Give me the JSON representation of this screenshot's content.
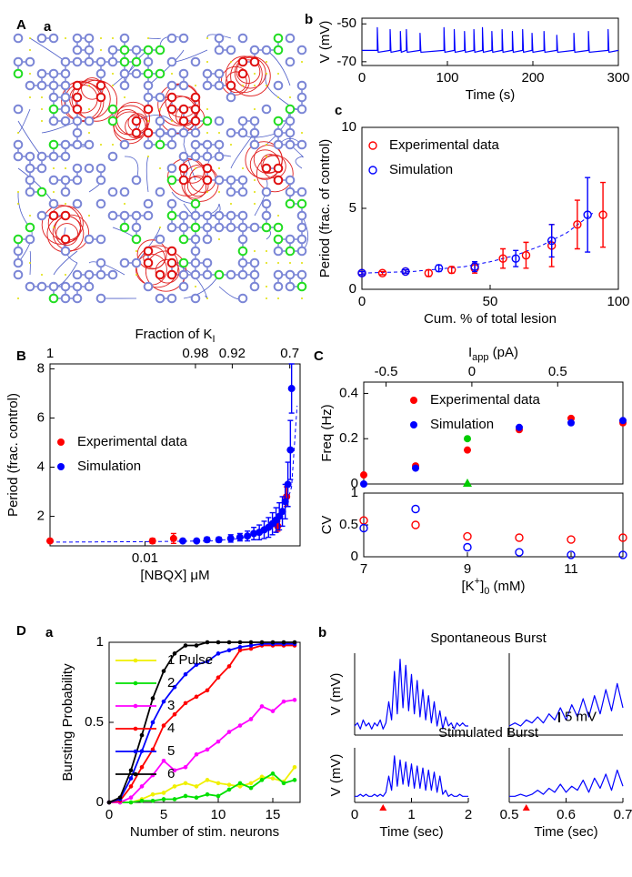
{
  "panel_labels": [
    "A",
    "a",
    "b",
    "c",
    "B",
    "C",
    "D",
    "a",
    "b"
  ],
  "chart_data": [
    {
      "type": "line",
      "y_label": "V (mV)",
      "x_label": "Time (s)",
      "xlim": [
        0,
        300
      ],
      "xticks": [
        0,
        100,
        200,
        300
      ],
      "ylim": [
        -72,
        -47
      ],
      "yticks": [
        -70,
        -50
      ],
      "series": [
        {
          "color": "#0000ff",
          "x": [
            0,
            18,
            18,
            19,
            33,
            33,
            34,
            45,
            45,
            46,
            52,
            52,
            53,
            68,
            68,
            69,
            96,
            96,
            97,
            108,
            108,
            109,
            120,
            120,
            121,
            131,
            131,
            132,
            141,
            141,
            142,
            152,
            152,
            153,
            164,
            164,
            165,
            176,
            176,
            177,
            188,
            188,
            189,
            199,
            199,
            200,
            213,
            213,
            214,
            228,
            228,
            229,
            248,
            248,
            249,
            265,
            265,
            266,
            288,
            288,
            289,
            300
          ],
          "values": [
            -64,
            -64,
            -52,
            -65,
            -64,
            -53,
            -65,
            -64,
            -54,
            -65,
            -64,
            -53,
            -65,
            -64,
            -55,
            -65,
            -64,
            -52,
            -65,
            -64,
            -53,
            -65,
            -64,
            -54,
            -65,
            -64,
            -53,
            -65,
            -64,
            -52,
            -65,
            -64,
            -54,
            -65,
            -64,
            -53,
            -65,
            -64,
            -54,
            -65,
            -64,
            -53,
            -65,
            -64,
            -55,
            -65,
            -64,
            -54,
            -65,
            -64,
            -56,
            -65,
            -64,
            -55,
            -65,
            -64,
            -54,
            -65,
            -64,
            -53,
            -65,
            -64
          ]
        }
      ]
    },
    {
      "type": "scatter",
      "y_label": "Period (frac. of control)",
      "x_label": "Cum. % of total lesion",
      "xlim": [
        0,
        100
      ],
      "xticks": [
        0,
        50,
        100
      ],
      "ylim": [
        0,
        10
      ],
      "yticks": [
        0,
        5,
        10
      ],
      "legend": "upper left",
      "series": [
        {
          "name": "Experimental data",
          "color": "#ff0000",
          "marker": "hollow",
          "x": [
            0,
            8,
            17,
            26,
            35,
            44,
            55,
            64,
            74,
            84,
            94
          ],
          "values": [
            1.0,
            1.0,
            1.1,
            1.0,
            1.2,
            1.3,
            1.9,
            2.1,
            2.7,
            4.0,
            4.6
          ],
          "errors": [
            0.1,
            0.1,
            0.1,
            0.2,
            0.2,
            0.3,
            0.6,
            0.8,
            1.3,
            1.5,
            2.0
          ]
        },
        {
          "name": "Simulation",
          "color": "#0000ff",
          "marker": "hollow",
          "x": [
            0,
            17,
            30,
            44,
            60,
            74,
            88
          ],
          "values": [
            1.0,
            1.1,
            1.3,
            1.4,
            1.9,
            3.0,
            4.6
          ],
          "errors": [
            0.1,
            0.1,
            0.2,
            0.3,
            0.5,
            1.0,
            2.3
          ]
        }
      ],
      "fit": {
        "color": "#0000ff",
        "x": [
          0,
          10,
          20,
          30,
          40,
          50,
          60,
          70,
          80,
          90
        ],
        "values": [
          1,
          1.05,
          1.1,
          1.25,
          1.4,
          1.7,
          2.1,
          2.7,
          3.5,
          4.7
        ]
      }
    },
    {
      "type": "scatter",
      "y_label": "Period (frac. control)",
      "x_label": "[NBQX] μM",
      "xscale": "log",
      "xlim": [
        0.001,
        0.43
      ],
      "xticks": [
        0.01
      ],
      "ylim": [
        0.8,
        8.2
      ],
      "yticks": [
        2,
        4,
        6,
        8
      ],
      "x2_label": [
        {
          "text": "Fraction of K"
        },
        {
          "text": "I",
          "shift": "sub"
        }
      ],
      "x2ticks": [
        {
          "value": 0.001,
          "label": "1"
        },
        {
          "value": 0.034,
          "label": "0.98"
        },
        {
          "value": 0.083,
          "label": "0.92"
        },
        {
          "value": 0.335,
          "label": "0.7"
        }
      ],
      "legend": "center left",
      "series": [
        {
          "name": "Experimental data",
          "color": "#ff0000",
          "marker": "filled",
          "x": [
            0.001,
            0.012,
            0.02,
            0.25,
            0.31
          ],
          "values": [
            1.0,
            1.0,
            1.1,
            1.6,
            2.8
          ],
          "errors": [
            0.05,
            0.1,
            0.2,
            0.2,
            0.4
          ]
        },
        {
          "name": "Simulation",
          "color": "#0000ff",
          "marker": "filled",
          "x": [
            0.025,
            0.035,
            0.045,
            0.06,
            0.08,
            0.1,
            0.12,
            0.14,
            0.16,
            0.18,
            0.2,
            0.22,
            0.24,
            0.26,
            0.28,
            0.3,
            0.32,
            0.34,
            0.35
          ],
          "values": [
            1.0,
            1.0,
            1.05,
            1.05,
            1.1,
            1.15,
            1.2,
            1.3,
            1.35,
            1.45,
            1.55,
            1.7,
            1.85,
            2.0,
            2.2,
            2.6,
            3.3,
            4.7,
            7.2
          ],
          "errors": [
            0.05,
            0.05,
            0.1,
            0.1,
            0.15,
            0.15,
            0.2,
            0.25,
            0.3,
            0.35,
            0.4,
            0.45,
            0.5,
            0.55,
            0.6,
            0.7,
            0.9,
            1.2,
            1.0
          ]
        }
      ],
      "fit": {
        "color": "#0000ff",
        "x": [
          0.001,
          0.01,
          0.05,
          0.1,
          0.15,
          0.2,
          0.25,
          0.3,
          0.35,
          0.4
        ],
        "values": [
          0.95,
          0.97,
          1.0,
          1.1,
          1.25,
          1.45,
          1.8,
          2.3,
          3.2,
          6.5
        ]
      }
    },
    {
      "type": "scatter",
      "y_label": "Freq (Hz)",
      "xlim": [
        7,
        12
      ],
      "ylim": [
        0,
        0.45
      ],
      "yticks": [
        0,
        0.2,
        0.4
      ],
      "x2_label": [
        {
          "text": "I"
        },
        {
          "text": "app",
          "shift": "sub"
        },
        {
          "text": " (pA)"
        }
      ],
      "x2lim": [
        -0.63,
        0.88
      ],
      "x2ticks": [
        -0.5,
        0,
        0.5
      ],
      "legend": "upper center",
      "series": [
        {
          "name": "Experimental data",
          "color": "#ff0000",
          "marker": "filled",
          "x": [
            7,
            8,
            9,
            10,
            11,
            12
          ],
          "values": [
            0.04,
            0.08,
            0.15,
            0.24,
            0.29,
            0.27
          ]
        },
        {
          "name": "Simulation",
          "color": "#0000ff",
          "marker": "filled",
          "x": [
            7,
            8,
            10,
            11,
            12
          ],
          "values": [
            0.0,
            0.07,
            0.25,
            0.27,
            0.28
          ]
        },
        {
          "color": "#00cc00",
          "marker": "filled",
          "x": [
            9
          ],
          "values": [
            0.2
          ]
        },
        {
          "color": "#00cc00",
          "marker": "triangle",
          "x": [
            9
          ],
          "values": [
            0
          ]
        }
      ]
    },
    {
      "type": "scatter",
      "y_label": "CV",
      "x_label": [
        {
          "text": "[K"
        },
        {
          "text": "+",
          "shift": "sup"
        },
        {
          "text": "]"
        },
        {
          "text": "0",
          "shift": "sub"
        },
        {
          "text": " (mM)"
        }
      ],
      "xlim": [
        7,
        12
      ],
      "xticks": [
        7,
        9,
        11
      ],
      "ylim": [
        0,
        1
      ],
      "yticks": [
        0,
        0.5,
        1
      ],
      "series": [
        {
          "color": "#ff0000",
          "marker": "hollow",
          "x": [
            7,
            8,
            9,
            10,
            11,
            12
          ],
          "values": [
            0.57,
            0.5,
            0.32,
            0.3,
            0.27,
            0.3
          ]
        },
        {
          "color": "#0000ff",
          "marker": "hollow",
          "x": [
            7,
            8,
            9,
            10,
            11,
            12
          ],
          "values": [
            0.45,
            0.75,
            0.15,
            0.07,
            0.03,
            0.03
          ]
        }
      ]
    },
    {
      "type": "line",
      "markers": true,
      "y_label": "Bursting Probability",
      "x_label": "Number of stim. neurons",
      "xlim": [
        0,
        17.5
      ],
      "xticks": [
        0,
        5,
        10,
        15
      ],
      "ylim": [
        0,
        1
      ],
      "yticks": [
        0,
        0.5,
        1
      ],
      "legend": "upper left",
      "x": [
        0,
        1,
        2,
        3,
        4,
        5,
        6,
        7,
        8,
        9,
        10,
        11,
        12,
        13,
        14,
        15,
        16,
        17
      ],
      "series": [
        {
          "name": "1 Pulse",
          "color": "#f0f000",
          "values": [
            0,
            0,
            0,
            0.02,
            0.05,
            0.06,
            0.1,
            0.12,
            0.1,
            0.14,
            0.12,
            0.11,
            0.1,
            0.12,
            0.16,
            0.15,
            0.13,
            0.22
          ]
        },
        {
          "name": "2",
          "color": "#00e000",
          "values": [
            0,
            0,
            0,
            0.01,
            0.01,
            0.02,
            0.02,
            0.04,
            0.03,
            0.05,
            0.04,
            0.08,
            0.12,
            0.09,
            0.14,
            0.18,
            0.12,
            0.14
          ]
        },
        {
          "name": "3",
          "color": "#ff00ff",
          "values": [
            0,
            0,
            0.03,
            0.1,
            0.17,
            0.26,
            0.2,
            0.22,
            0.3,
            0.33,
            0.38,
            0.44,
            0.48,
            0.52,
            0.6,
            0.57,
            0.63,
            0.64
          ]
        },
        {
          "name": "4",
          "color": "#ff0000",
          "values": [
            0,
            0.01,
            0.1,
            0.22,
            0.33,
            0.48,
            0.55,
            0.62,
            0.66,
            0.7,
            0.78,
            0.85,
            0.95,
            0.96,
            0.98,
            0.98,
            0.98,
            0.98
          ]
        },
        {
          "name": "5",
          "color": "#0000ff",
          "values": [
            0,
            0.02,
            0.15,
            0.32,
            0.5,
            0.63,
            0.72,
            0.8,
            0.86,
            0.88,
            0.93,
            0.95,
            0.97,
            0.98,
            0.99,
            0.99,
            0.99,
            0.99
          ]
        },
        {
          "name": "6",
          "color": "#000000",
          "values": [
            0,
            0.03,
            0.2,
            0.42,
            0.65,
            0.82,
            0.93,
            0.98,
            0.98,
            1,
            1,
            1,
            1,
            1,
            1,
            1,
            1,
            1
          ]
        }
      ]
    },
    {
      "type": "line",
      "title": "Spontaneous Burst",
      "y_label": "V (mV)",
      "xlim": [
        0,
        2
      ],
      "ylim": [
        -3,
        24
      ],
      "series": [
        {
          "color": "#0000ff",
          "x": [
            0,
            0.05,
            0.1,
            0.15,
            0.2,
            0.25,
            0.3,
            0.35,
            0.4,
            0.45,
            0.5,
            0.55,
            0.6,
            0.65,
            0.7,
            0.75,
            0.8,
            0.85,
            0.9,
            0.95,
            1,
            1.05,
            1.1,
            1.15,
            1.2,
            1.25,
            1.3,
            1.35,
            1.4,
            1.45,
            1.5,
            1.55,
            1.6,
            1.65,
            1.7,
            1.75,
            1.8,
            1.85,
            1.9,
            1.95,
            2
          ],
          "values": [
            0,
            1,
            -1,
            2,
            0,
            1,
            -1,
            1,
            0,
            2,
            -1,
            1,
            8,
            2,
            18,
            4,
            22,
            6,
            20,
            5,
            17,
            4,
            15,
            3,
            12,
            2,
            10,
            1,
            8,
            0,
            5,
            -1,
            3,
            0,
            1,
            -1,
            1,
            0,
            1,
            0,
            0
          ]
        }
      ]
    },
    {
      "type": "line",
      "xlim": [
        0,
        1
      ],
      "ylim": [
        -3,
        24
      ],
      "series": [
        {
          "color": "#0000ff",
          "x": [
            0,
            0.05,
            0.1,
            0.15,
            0.2,
            0.25,
            0.3,
            0.35,
            0.4,
            0.45,
            0.5,
            0.55,
            0.6,
            0.65,
            0.7,
            0.75,
            0.8,
            0.85,
            0.9,
            0.95,
            1
          ],
          "values": [
            0,
            1,
            0,
            2,
            1,
            3,
            1,
            4,
            2,
            6,
            2,
            7,
            3,
            9,
            3,
            10,
            4,
            12,
            5,
            14,
            6
          ]
        }
      ]
    },
    {
      "type": "line",
      "title": "Stimulated Burst",
      "y_label": "V (mV)",
      "x_label": "Time (sec)",
      "xlim": [
        0,
        2
      ],
      "xticks": [
        0,
        1,
        2
      ],
      "ylim": [
        -3,
        24
      ],
      "stimulus_x": 0.5,
      "stimulus_color": "#ff0000",
      "series": [
        {
          "color": "#0000ff",
          "x": [
            0,
            0.05,
            0.1,
            0.15,
            0.2,
            0.25,
            0.3,
            0.35,
            0.4,
            0.45,
            0.5,
            0.55,
            0.6,
            0.65,
            0.7,
            0.75,
            0.8,
            0.85,
            0.9,
            0.95,
            1,
            1.05,
            1.1,
            1.15,
            1.2,
            1.25,
            1.3,
            1.35,
            1.4,
            1.45,
            1.5,
            1.55,
            1.6,
            1.65,
            1.7,
            1.75,
            1.8,
            1.85,
            1.9,
            1.95,
            2
          ],
          "values": [
            0,
            0,
            1,
            0,
            1,
            0,
            0,
            1,
            0,
            1,
            0,
            2,
            10,
            3,
            20,
            5,
            18,
            6,
            17,
            5,
            16,
            4,
            15,
            4,
            14,
            3,
            13,
            3,
            12,
            2,
            10,
            1,
            3,
            0,
            1,
            0,
            0,
            1,
            0,
            0,
            0
          ]
        }
      ]
    },
    {
      "type": "line",
      "x_label": "Time (sec)",
      "xlim": [
        0.5,
        0.7
      ],
      "xticks": [
        0.5,
        0.6,
        0.7
      ],
      "ylim": [
        -3,
        24
      ],
      "stimulus_x": 0.53,
      "stimulus_color": "#ff0000",
      "scale_bar": {
        "value": 5,
        "label": "5 mV"
      },
      "series": [
        {
          "color": "#0000ff",
          "x": [
            0.5,
            0.51,
            0.52,
            0.53,
            0.54,
            0.55,
            0.56,
            0.57,
            0.58,
            0.59,
            0.6,
            0.61,
            0.62,
            0.63,
            0.64,
            0.65,
            0.66,
            0.67,
            0.68,
            0.69,
            0.7
          ],
          "values": [
            0,
            0,
            1,
            0,
            1,
            3,
            1,
            4,
            2,
            6,
            2,
            5,
            3,
            8,
            2,
            9,
            4,
            11,
            3,
            13,
            5
          ]
        }
      ]
    }
  ]
}
